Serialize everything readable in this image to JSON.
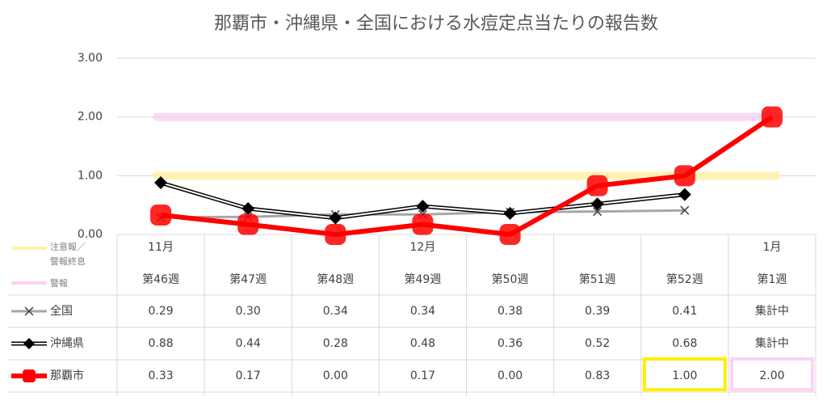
{
  "chart_data": {
    "type": "line",
    "title": "那覇市・沖縄県・全国における水痘定点当たりの報告数",
    "months": [
      "11月",
      null,
      null,
      "12月",
      null,
      null,
      null,
      "1月"
    ],
    "categories": [
      "第46週",
      "第47週",
      "第48週",
      "第49週",
      "第50週",
      "第51週",
      "第52週",
      "第1週"
    ],
    "ylim": [
      0,
      3
    ],
    "yticks": [
      {
        "value": 0,
        "label": "0.00"
      },
      {
        "value": 1,
        "label": "1.00"
      },
      {
        "value": 2,
        "label": "2.00"
      },
      {
        "value": 3,
        "label": "3.00"
      }
    ],
    "grid": true,
    "reference_lines": [
      {
        "name": "注意報／警報終息",
        "value": 1,
        "color": "#fff2a8"
      },
      {
        "name": "警報",
        "value": 2,
        "color": "#fbd3f3"
      }
    ],
    "series": [
      {
        "name": "全国",
        "color": "#a6a6a6",
        "marker": "x",
        "values": [
          0.29,
          0.3,
          0.34,
          0.34,
          0.38,
          0.39,
          0.41,
          null
        ],
        "value_labels": [
          "0.29",
          "0.30",
          "0.34",
          "0.34",
          "0.38",
          "0.39",
          "0.41",
          "集計中"
        ]
      },
      {
        "name": "沖縄県",
        "color": "#000000",
        "marker": "diamond",
        "values": [
          0.88,
          0.44,
          0.28,
          0.48,
          0.36,
          0.52,
          0.68,
          null
        ],
        "value_labels": [
          "0.88",
          "0.44",
          "0.28",
          "0.48",
          "0.36",
          "0.52",
          "0.68",
          "集計中"
        ]
      },
      {
        "name": "那覇市",
        "color": "#ff0000",
        "marker": "square",
        "values": [
          0.33,
          0.17,
          0.0,
          0.17,
          0.0,
          0.83,
          1.0,
          2.0
        ],
        "value_labels": [
          "0.33",
          "0.17",
          "0.00",
          "0.17",
          "0.00",
          "0.83",
          "1.00",
          "2.00"
        ]
      }
    ]
  }
}
